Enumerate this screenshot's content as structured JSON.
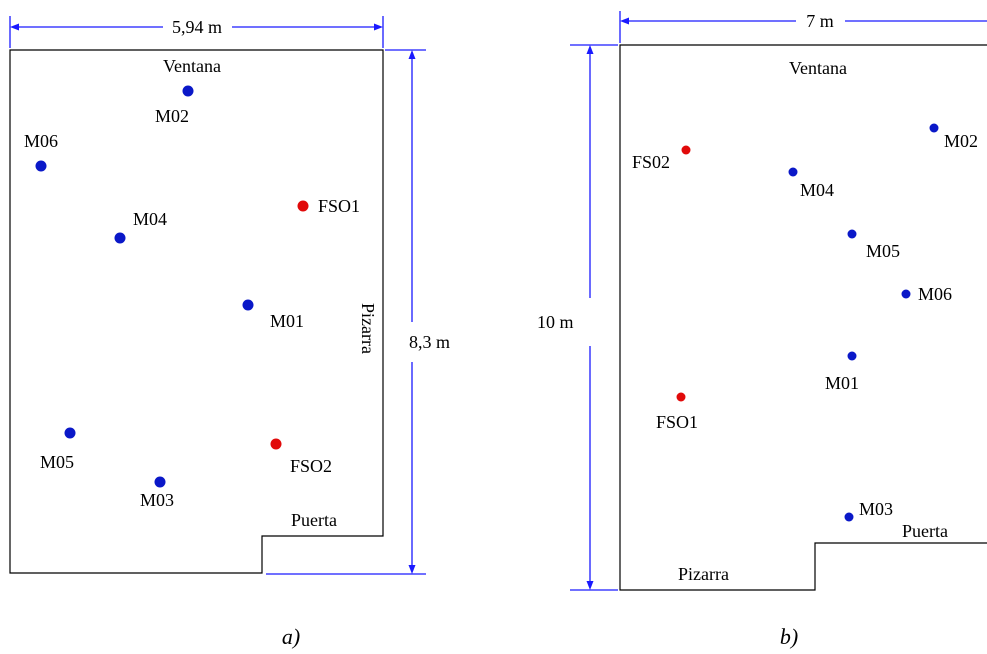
{
  "colors": {
    "sensor_blue": "#0a18c8",
    "sensor_red": "#e10a0a",
    "dimension_line": "#1a1aff",
    "wall": "#000000"
  },
  "panel_a": {
    "caption": "a)",
    "width_label": "5,94 m",
    "height_label": "8,3 m",
    "window_label": "Ventana",
    "board_label": "Pizarra",
    "door_label": "Puerta",
    "points": {
      "M02": "M02",
      "M06": "M06",
      "M04": "M04",
      "FSO1": "FSO1",
      "M01": "M01",
      "M05": "M05",
      "FSO2": "FSO2",
      "M03": "M03"
    }
  },
  "panel_b": {
    "caption": "b)",
    "width_label": "7 m",
    "height_label": "10 m",
    "window_label": "Ventana",
    "board_label": "Pizarra",
    "door_label": "Puerta",
    "points": {
      "M02": "M02",
      "FS02": "FS02",
      "M04": "M04",
      "M05": "M05",
      "M06": "M06",
      "M01": "M01",
      "FSO1": "FSO1",
      "M03": "M03"
    }
  }
}
